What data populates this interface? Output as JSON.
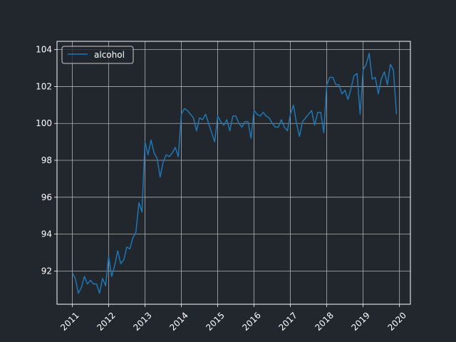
{
  "chart_data": {
    "type": "line",
    "title": "",
    "xlabel": "",
    "ylabel": "",
    "xlim": [
      2010.58,
      2020.3
    ],
    "ylim": [
      90.2,
      104.45
    ],
    "x_ticks": [
      {
        "value": 2011,
        "label": "2011"
      },
      {
        "value": 2012,
        "label": "2012"
      },
      {
        "value": 2013,
        "label": "2013"
      },
      {
        "value": 2014,
        "label": "2014"
      },
      {
        "value": 2015,
        "label": "2015"
      },
      {
        "value": 2016,
        "label": "2016"
      },
      {
        "value": 2017,
        "label": "2017"
      },
      {
        "value": 2018,
        "label": "2018"
      },
      {
        "value": 2019,
        "label": "2019"
      },
      {
        "value": 2020,
        "label": "2020"
      }
    ],
    "y_ticks": [
      {
        "value": 92,
        "label": "92"
      },
      {
        "value": 94,
        "label": "94"
      },
      {
        "value": 96,
        "label": "96"
      },
      {
        "value": 98,
        "label": "98"
      },
      {
        "value": 100,
        "label": "100"
      },
      {
        "value": 102,
        "label": "102"
      },
      {
        "value": 104,
        "label": "104"
      }
    ],
    "grid": true,
    "legend_position": "top-left",
    "colors": {
      "background": "#22262d",
      "grid": "#b0b0b0",
      "line": "#1f77b4",
      "text": "#ffffff"
    },
    "series": [
      {
        "name": "alcohol",
        "x": [
          2011.0,
          2011.083,
          2011.167,
          2011.25,
          2011.333,
          2011.417,
          2011.5,
          2011.583,
          2011.667,
          2011.75,
          2011.833,
          2011.917,
          2012.0,
          2012.083,
          2012.167,
          2012.25,
          2012.333,
          2012.417,
          2012.5,
          2012.583,
          2012.667,
          2012.75,
          2012.833,
          2012.917,
          2013.0,
          2013.083,
          2013.167,
          2013.25,
          2013.333,
          2013.417,
          2013.5,
          2013.583,
          2013.667,
          2013.75,
          2013.833,
          2013.917,
          2014.0,
          2014.083,
          2014.167,
          2014.25,
          2014.333,
          2014.417,
          2014.5,
          2014.583,
          2014.667,
          2014.75,
          2014.833,
          2014.917,
          2015.0,
          2015.083,
          2015.167,
          2015.25,
          2015.333,
          2015.417,
          2015.5,
          2015.583,
          2015.667,
          2015.75,
          2015.833,
          2015.917,
          2016.0,
          2016.083,
          2016.167,
          2016.25,
          2016.333,
          2016.417,
          2016.5,
          2016.583,
          2016.667,
          2016.75,
          2016.833,
          2016.917,
          2017.0,
          2017.083,
          2017.167,
          2017.25,
          2017.333,
          2017.417,
          2017.5,
          2017.583,
          2017.667,
          2017.75,
          2017.833,
          2017.917,
          2018.0,
          2018.083,
          2018.167,
          2018.25,
          2018.333,
          2018.417,
          2018.5,
          2018.583,
          2018.667,
          2018.75,
          2018.833,
          2018.917,
          2019.0,
          2019.083,
          2019.167,
          2019.25,
          2019.333,
          2019.417,
          2019.5,
          2019.583,
          2019.667,
          2019.75,
          2019.833,
          2019.917
        ],
        "values": [
          91.9,
          91.6,
          90.8,
          91.1,
          91.7,
          91.3,
          91.5,
          91.3,
          91.3,
          90.8,
          91.6,
          91.2,
          92.8,
          91.7,
          92.3,
          93.1,
          92.4,
          92.6,
          93.3,
          93.2,
          93.8,
          94.1,
          95.7,
          95.2,
          99.0,
          98.3,
          99.1,
          98.4,
          98.1,
          97.1,
          97.9,
          98.3,
          98.2,
          98.4,
          98.7,
          98.2,
          100.5,
          100.8,
          100.7,
          100.5,
          100.3,
          99.6,
          100.3,
          100.2,
          100.5,
          100.0,
          99.5,
          99.0,
          100.4,
          100.1,
          99.9,
          100.2,
          99.6,
          100.4,
          100.4,
          100.0,
          99.8,
          100.1,
          100.1,
          99.2,
          100.7,
          100.5,
          100.4,
          100.6,
          100.4,
          100.3,
          100.0,
          99.8,
          99.8,
          100.2,
          99.8,
          99.6,
          100.5,
          101.0,
          100.0,
          99.3,
          100.1,
          100.3,
          100.5,
          100.7,
          99.9,
          100.6,
          100.6,
          99.5,
          102.1,
          102.5,
          102.5,
          102.1,
          102.1,
          101.6,
          101.8,
          101.3,
          101.9,
          102.6,
          102.7,
          100.5,
          102.9,
          103.2,
          103.8,
          102.4,
          102.5,
          101.6,
          102.4,
          102.8,
          102.1,
          103.2,
          102.9,
          100.5
        ]
      }
    ]
  }
}
